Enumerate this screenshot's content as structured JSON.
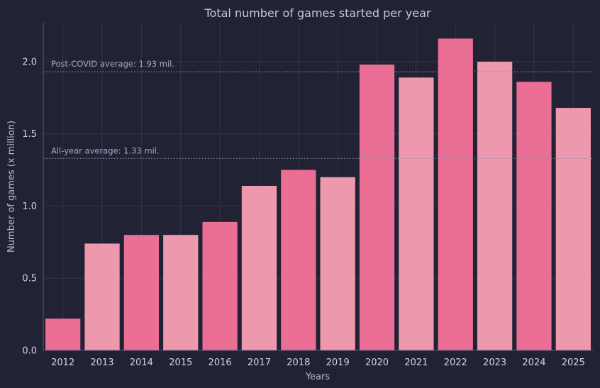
{
  "chart_data": {
    "type": "bar",
    "title": "Total number of games started per year",
    "xlabel": "Years",
    "ylabel": "Number of games (x million)",
    "categories": [
      "2012",
      "2013",
      "2014",
      "2015",
      "2016",
      "2017",
      "2018",
      "2019",
      "2020",
      "2021",
      "2022",
      "2023",
      "2024",
      "2025"
    ],
    "values": [
      0.22,
      0.74,
      0.8,
      0.8,
      0.89,
      1.14,
      1.25,
      1.2,
      1.98,
      1.89,
      2.16,
      2.0,
      1.86,
      1.68
    ],
    "ylim": [
      0,
      2.27
    ],
    "yticks": [
      0.0,
      0.5,
      1.0,
      1.5,
      2.0
    ],
    "ytick_labels": [
      "0.0",
      "0.5",
      "1.0",
      "1.5",
      "2.0"
    ],
    "grid": true,
    "reference_lines": [
      {
        "value": 1.93,
        "label": "Post-COVID average: 1.93 mil."
      },
      {
        "value": 1.33,
        "label": "All-year average: 1.33 mil."
      }
    ],
    "colors": {
      "background": "#222235",
      "bar_dark": "#eb6e94",
      "bar_light": "#ee98ae",
      "grid": "#34344a",
      "axis": "#5d5b76",
      "reference_line": "#8e8aae"
    }
  }
}
